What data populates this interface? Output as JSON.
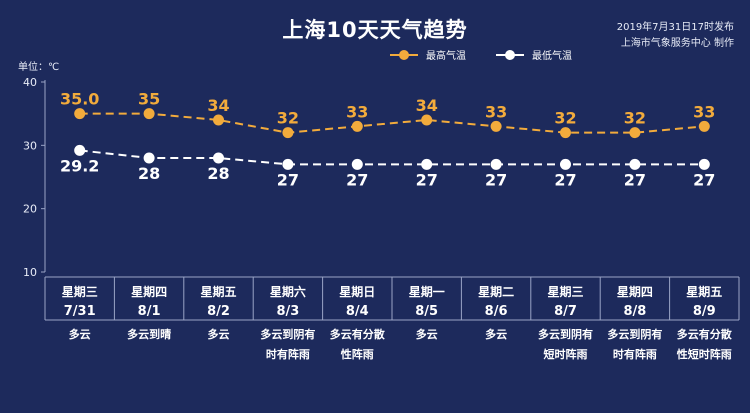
{
  "header": {
    "title": "上海10天天气趋势",
    "publish_time": "2019年7月31日17时发布",
    "source": "上海市气象服务中心 制作"
  },
  "unit_label": "单位：℃",
  "colors": {
    "background": "#1d2a5c",
    "high": "#f2ab3c",
    "low": "#ffffff",
    "grid": "#9aa4c6"
  },
  "chart_data": {
    "type": "line",
    "title": "上海10天天气趋势",
    "ylabel": "单位：℃",
    "ylim": [
      10,
      40
    ],
    "yticks": [
      10,
      20,
      30,
      40
    ],
    "grid": false,
    "legend_position": "top-right",
    "categories": [
      "7/31",
      "8/1",
      "8/2",
      "8/3",
      "8/4",
      "8/5",
      "8/6",
      "8/7",
      "8/8",
      "8/9"
    ],
    "weekdays": [
      "星期三",
      "星期四",
      "星期五",
      "星期六",
      "星期日",
      "星期一",
      "星期二",
      "星期三",
      "星期四",
      "星期五"
    ],
    "weather": [
      [
        "多云"
      ],
      [
        "多云到晴"
      ],
      [
        "多云"
      ],
      [
        "多云到阴有",
        "时有阵雨"
      ],
      [
        "多云有分散",
        "性阵雨"
      ],
      [
        "多云"
      ],
      [
        "多云"
      ],
      [
        "多云到阴有",
        "短时阵雨"
      ],
      [
        "多云到阴有",
        "时有阵雨"
      ],
      [
        "多云有分散",
        "性短时阵雨"
      ]
    ],
    "series": [
      {
        "name": "最高气温",
        "values": [
          35.0,
          35,
          34,
          32,
          33,
          34,
          33,
          32,
          32,
          33
        ],
        "labels": [
          "35.0",
          "35",
          "34",
          "32",
          "33",
          "34",
          "33",
          "32",
          "32",
          "33"
        ]
      },
      {
        "name": "最低气温",
        "values": [
          29.2,
          28,
          28,
          27,
          27,
          27,
          27,
          27,
          27,
          27
        ],
        "labels": [
          "29.2",
          "28",
          "28",
          "27",
          "27",
          "27",
          "27",
          "27",
          "27",
          "27"
        ]
      }
    ]
  }
}
